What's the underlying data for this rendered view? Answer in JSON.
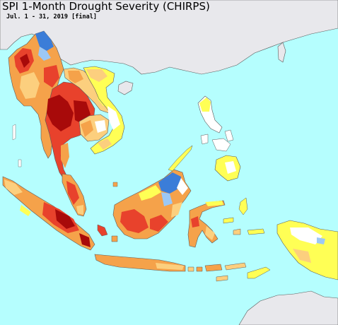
{
  "title": "SPI 1-Month Drought Severity (CHIRPS)",
  "subtitle": "Jul. 1 - 31, 2019 [final]",
  "colors": {
    "ocean": "#b5fefe",
    "land_outside": "#e8e8ec",
    "near_normal": "#ffffff",
    "abnormally_dry": "#ffff55",
    "moderate_drought": "#fccf7e",
    "severe_drought": "#f5a24a",
    "extreme_drought": "#e8422c",
    "exceptional_drought": "#a80a0a",
    "wet": "#3b7dd8",
    "very_wet": "#9cc8f5",
    "border": "#5a5a5a"
  },
  "regions": [
    "Myanmar",
    "Thailand",
    "Laos",
    "Vietnam",
    "Cambodia",
    "China",
    "Hainan",
    "Taiwan",
    "Philippines",
    "Peninsular Malaysia",
    "Sumatra",
    "Java",
    "Lesser Sunda Islands",
    "Borneo",
    "Sulawesi",
    "Maluku",
    "New Guinea",
    "Australia"
  ]
}
